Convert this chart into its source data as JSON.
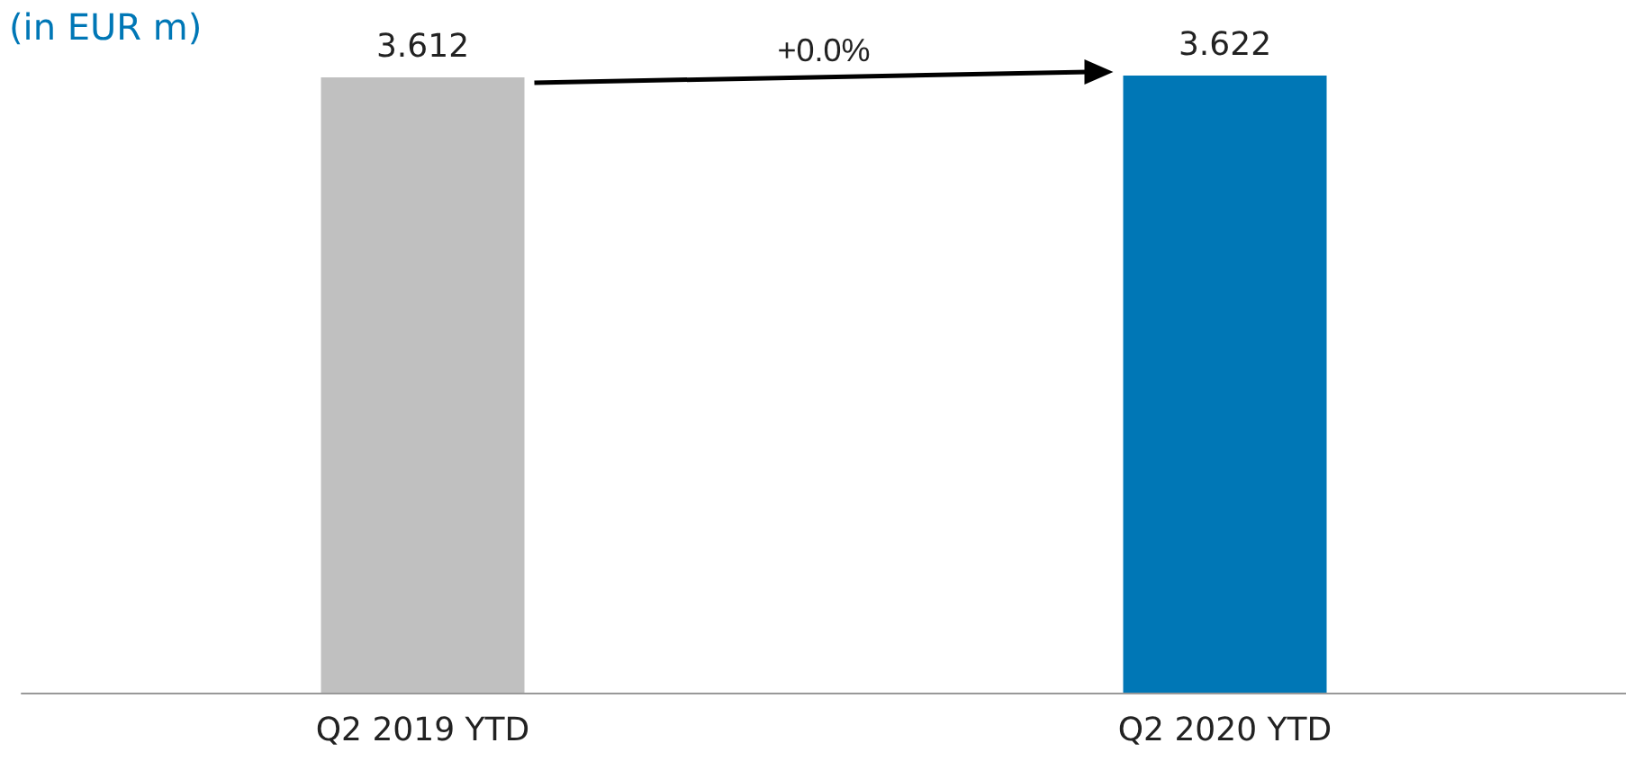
{
  "chart_data": {
    "type": "bar",
    "title": "(in EUR m)",
    "categories": [
      "Q2 2019 YTD",
      "Q2 2020 YTD"
    ],
    "values": [
      3.612,
      3.622
    ],
    "colors": [
      "#c0c0c0",
      "#0077b6"
    ],
    "ylim": [
      0,
      3.622
    ],
    "data_labels": true,
    "annotations": [
      "+0.0%"
    ]
  }
}
